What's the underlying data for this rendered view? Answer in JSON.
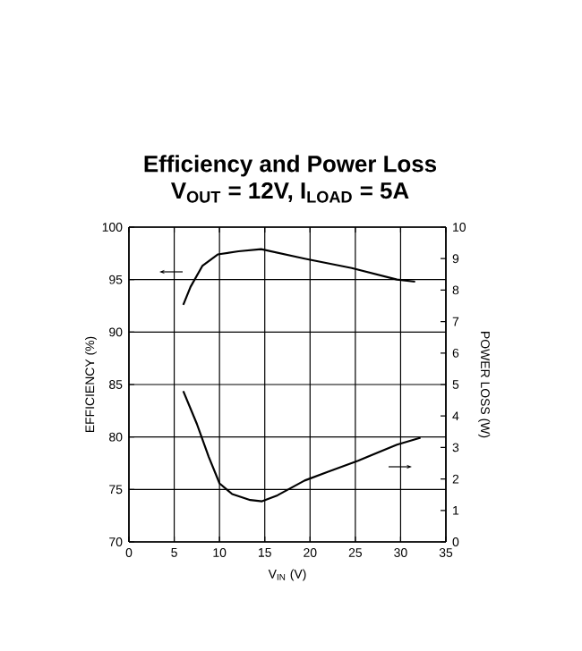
{
  "chart_data": {
    "type": "line",
    "title": "Efficiency and Power Loss",
    "subtitle": "V$_{OUT}$ = 12V, I$_{LOAD}$ = 5A",
    "xlabel": "V$_{IN}$ (V)",
    "ylabel": "EFFICIENCY (%)",
    "y2label": "POWER LOSS (W)",
    "xlim": [
      0,
      35
    ],
    "xticks": [
      0,
      5,
      10,
      15,
      20,
      25,
      30,
      35
    ],
    "ylim": [
      70,
      100
    ],
    "yticks": [
      70,
      75,
      80,
      85,
      90,
      95,
      100
    ],
    "y2lim": [
      0,
      10
    ],
    "y2ticks": [
      0,
      1,
      2,
      3,
      4,
      5,
      6,
      7,
      8,
      9,
      10
    ],
    "grid": true,
    "marker": "none",
    "line_style": "solid",
    "series": [
      {
        "color": "#000000",
        "x": [
          6.0,
          6.8,
          8.1,
          9.8,
          12.1,
          14.6,
          19.4,
          24.6,
          29.6,
          31.6
        ],
        "values": [
          92.6,
          94.3,
          96.3,
          97.4,
          97.7,
          97.9,
          97.0,
          96.1,
          95.0,
          94.8
        ]
      },
      {
        "color": "#000000",
        "axis": "y2",
        "x": [
          6.0,
          7.5,
          8.8,
          10.0,
          11.4,
          13.4,
          14.7,
          16.4,
          19.4,
          22.0,
          25.3,
          29.6,
          32.2
        ],
        "values": [
          4.79,
          3.75,
          2.71,
          1.86,
          1.52,
          1.33,
          1.29,
          1.48,
          1.95,
          2.23,
          2.58,
          3.09,
          3.31
        ]
      }
    ]
  }
}
